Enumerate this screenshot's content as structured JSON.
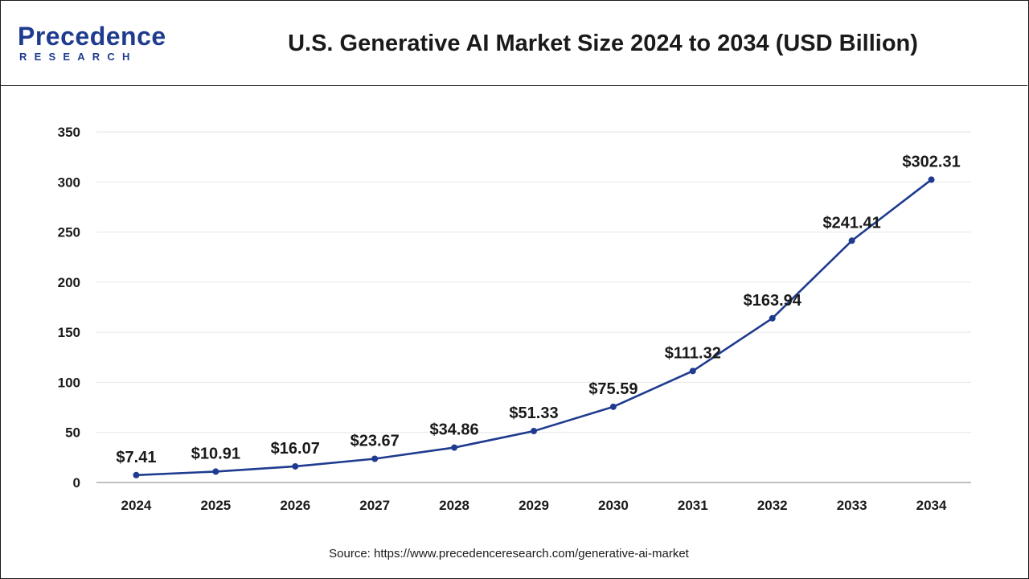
{
  "header": {
    "logo_main": "Precedence",
    "logo_sub": "RESEARCH",
    "title": "U.S. Generative AI Market Size 2024 to 2034 (USD Billion)"
  },
  "source": "Source: https://www.precedenceresearch.com/generative-ai-market",
  "colors": {
    "line": "#1f3b8f",
    "brand": "#1f3b8f",
    "grid": "#e6e6e6",
    "text": "#1a1a1a"
  },
  "chart_data": {
    "type": "line",
    "title": "U.S. Generative AI Market Size 2024 to 2034 (USD Billion)",
    "xlabel": "",
    "ylabel": "",
    "categories": [
      "2024",
      "2025",
      "2026",
      "2027",
      "2028",
      "2029",
      "2030",
      "2031",
      "2032",
      "2033",
      "2034"
    ],
    "series": [
      {
        "name": "Market Size (USD Billion)",
        "values": [
          7.41,
          10.91,
          16.07,
          23.67,
          34.86,
          51.33,
          75.59,
          111.32,
          163.94,
          241.41,
          302.31
        ],
        "labels": [
          "$7.41",
          "$10.91",
          "$16.07",
          "$23.67",
          "$34.86",
          "$51.33",
          "$75.59",
          "$111.32",
          "$163.94",
          "$241.41",
          "$302.31"
        ]
      }
    ],
    "ylim": [
      0,
      350
    ],
    "yticks": [
      0,
      50,
      100,
      150,
      200,
      250,
      300,
      350
    ],
    "grid": true,
    "legend": "none"
  }
}
